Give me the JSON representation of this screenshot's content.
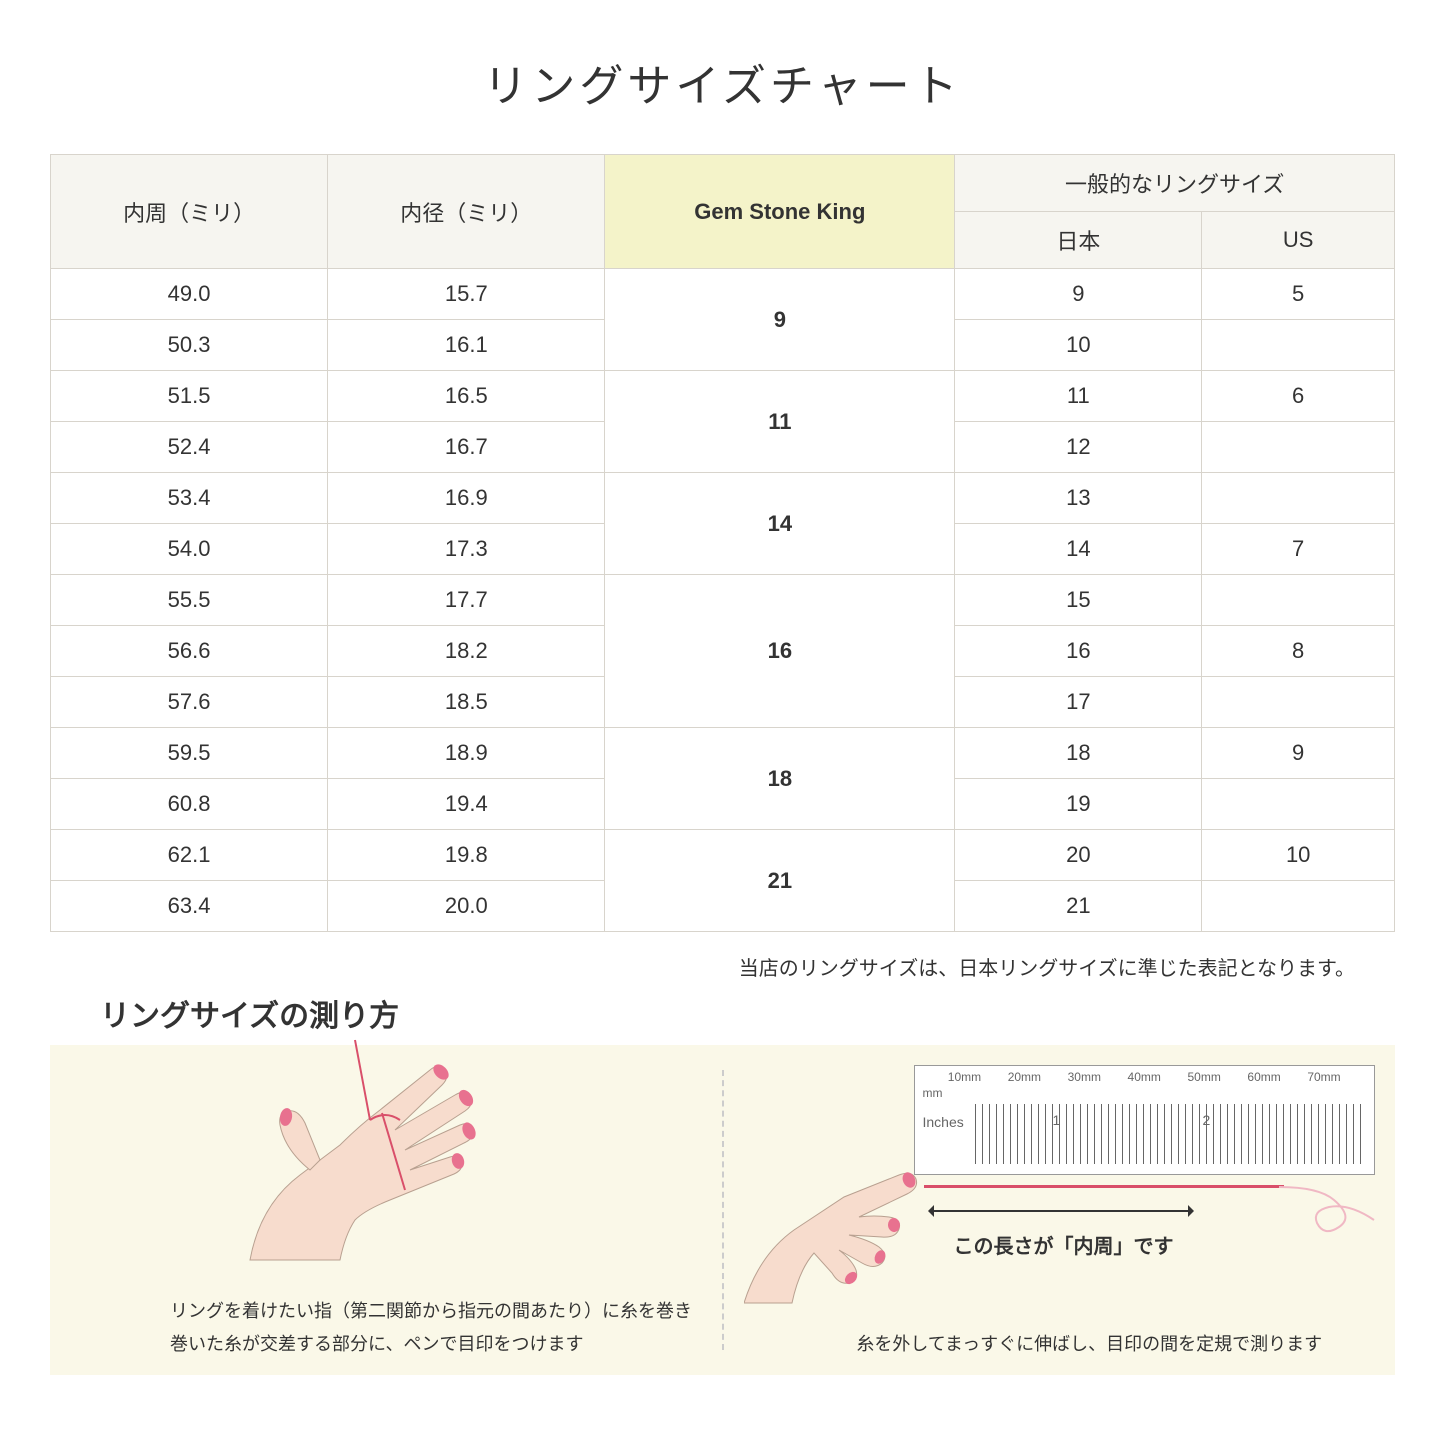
{
  "title": "リングサイズチャート",
  "table": {
    "headers": {
      "circumference": "内周（ミリ）",
      "diameter": "内径（ミリ）",
      "gsk": "Gem Stone King",
      "general": "一般的なリングサイズ",
      "japan": "日本",
      "us": "US"
    },
    "rows": [
      {
        "circ": "49.0",
        "dia": "15.7",
        "jp": "9",
        "us": "5"
      },
      {
        "circ": "50.3",
        "dia": "16.1",
        "jp": "10",
        "us": ""
      },
      {
        "circ": "51.5",
        "dia": "16.5",
        "jp": "11",
        "us": "6"
      },
      {
        "circ": "52.4",
        "dia": "16.7",
        "jp": "12",
        "us": ""
      },
      {
        "circ": "53.4",
        "dia": "16.9",
        "jp": "13",
        "us": ""
      },
      {
        "circ": "54.0",
        "dia": "17.3",
        "jp": "14",
        "us": "7"
      },
      {
        "circ": "55.5",
        "dia": "17.7",
        "jp": "15",
        "us": ""
      },
      {
        "circ": "56.6",
        "dia": "18.2",
        "jp": "16",
        "us": "8"
      },
      {
        "circ": "57.6",
        "dia": "18.5",
        "jp": "17",
        "us": ""
      },
      {
        "circ": "59.5",
        "dia": "18.9",
        "jp": "18",
        "us": "9"
      },
      {
        "circ": "60.8",
        "dia": "19.4",
        "jp": "19",
        "us": ""
      },
      {
        "circ": "62.1",
        "dia": "19.8",
        "jp": "20",
        "us": "10"
      },
      {
        "circ": "63.4",
        "dia": "20.0",
        "jp": "21",
        "us": ""
      }
    ],
    "gsk_groups": [
      {
        "label": "9",
        "span": 2
      },
      {
        "label": "11",
        "span": 2
      },
      {
        "label": "14",
        "span": 2
      },
      {
        "label": "16",
        "span": 3
      },
      {
        "label": "18",
        "span": 2
      },
      {
        "label": "21",
        "span": 2
      }
    ],
    "header_bg": "#f6f5f0",
    "gsk_bg": "#f4f3c9",
    "border_color": "#d8d4cc"
  },
  "note": "当店のリングサイズは、日本リングサイズに準じた表記となります。",
  "howto": {
    "title": "リングサイズの測り方",
    "bg_color": "#faf8e8",
    "hand_color": "#f7dccd",
    "nail_color": "#e8718f",
    "thread_color": "#d94f6a",
    "left_caption_line1": "リングを着けたい指（第二関節から指元の間あたり）に糸を巻き",
    "left_caption_line2": "巻いた糸が交差する部分に、ペンで目印をつけます",
    "right_caption": "糸を外してまっすぐに伸ばし、目印の間を定規で測ります",
    "arrow_label": "この長さが「内周」です",
    "ruler": {
      "mm_label": "mm",
      "inches_label": "Inches",
      "mm_marks": [
        "10mm",
        "20mm",
        "30mm",
        "40mm",
        "50mm",
        "60mm",
        "70mm"
      ],
      "inch_marks": [
        "1",
        "2"
      ]
    }
  }
}
